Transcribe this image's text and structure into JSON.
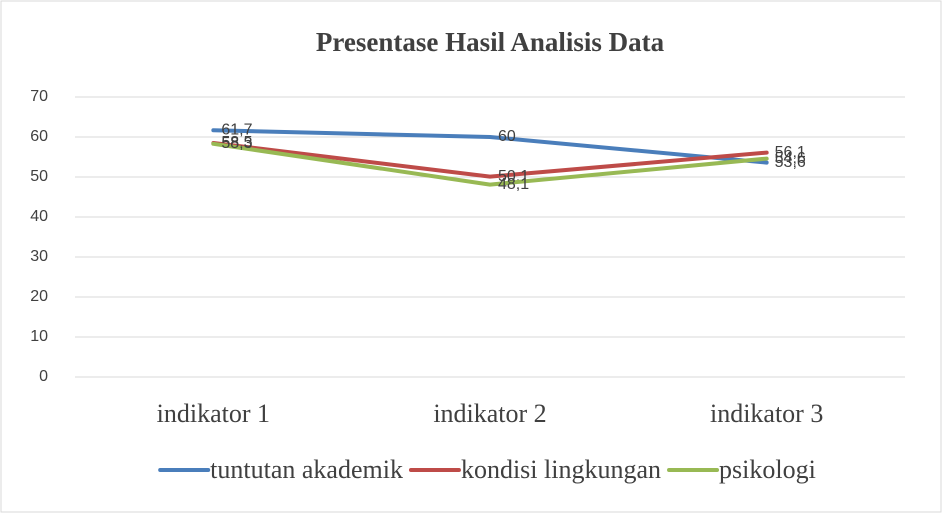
{
  "chart_data": {
    "type": "line",
    "title": "Presentase Hasil Analisis Data",
    "categories": [
      "indikator 1",
      "indikator 2",
      "indikator 3"
    ],
    "series": [
      {
        "name": "tuntutan akademik",
        "color": "#4a7ebb",
        "values": [
          61.7,
          60,
          53.6
        ],
        "value_labels": [
          "61,7",
          "60",
          "53,6"
        ]
      },
      {
        "name": "kondisi lingkungan",
        "color": "#be4b48",
        "values": [
          58.5,
          50.1,
          56.1
        ],
        "value_labels": [
          "58,5",
          "50,1",
          "56,1"
        ]
      },
      {
        "name": "psikologi",
        "color": "#98b954",
        "values": [
          58.3,
          48.1,
          54.6
        ],
        "value_labels": [
          "58,3",
          "48,1",
          "54,6"
        ]
      }
    ],
    "ylim": [
      0,
      70
    ],
    "yticks": [
      0,
      10,
      20,
      30,
      40,
      50,
      60,
      70
    ],
    "grid": true,
    "legend": "bottom"
  }
}
